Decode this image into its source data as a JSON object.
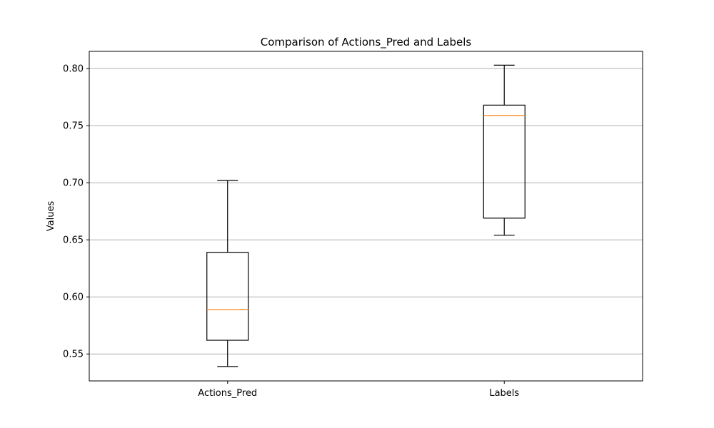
{
  "chart_data": {
    "type": "box",
    "title": "Comparison of Actions_Pred and Labels",
    "xlabel": "",
    "ylabel": "Values",
    "ylim": [
      0.5264,
      0.8151
    ],
    "yticks": [
      0.55,
      0.6,
      0.65,
      0.7,
      0.75,
      0.8
    ],
    "ytick_labels": [
      "0.55",
      "0.60",
      "0.65",
      "0.70",
      "0.75",
      "0.80"
    ],
    "grid": "y",
    "categories": [
      "Actions_Pred",
      "Labels"
    ],
    "boxes": [
      {
        "category": "Actions_Pred",
        "whisker_low": 0.539,
        "q1": 0.562,
        "median": 0.589,
        "q3": 0.639,
        "whisker_high": 0.702
      },
      {
        "category": "Labels",
        "whisker_low": 0.654,
        "q1": 0.669,
        "median": 0.759,
        "q3": 0.768,
        "whisker_high": 0.803
      }
    ],
    "colors": {
      "box": "#000000",
      "median": "#ff7f0e",
      "grid": "#b0b0b0"
    }
  }
}
